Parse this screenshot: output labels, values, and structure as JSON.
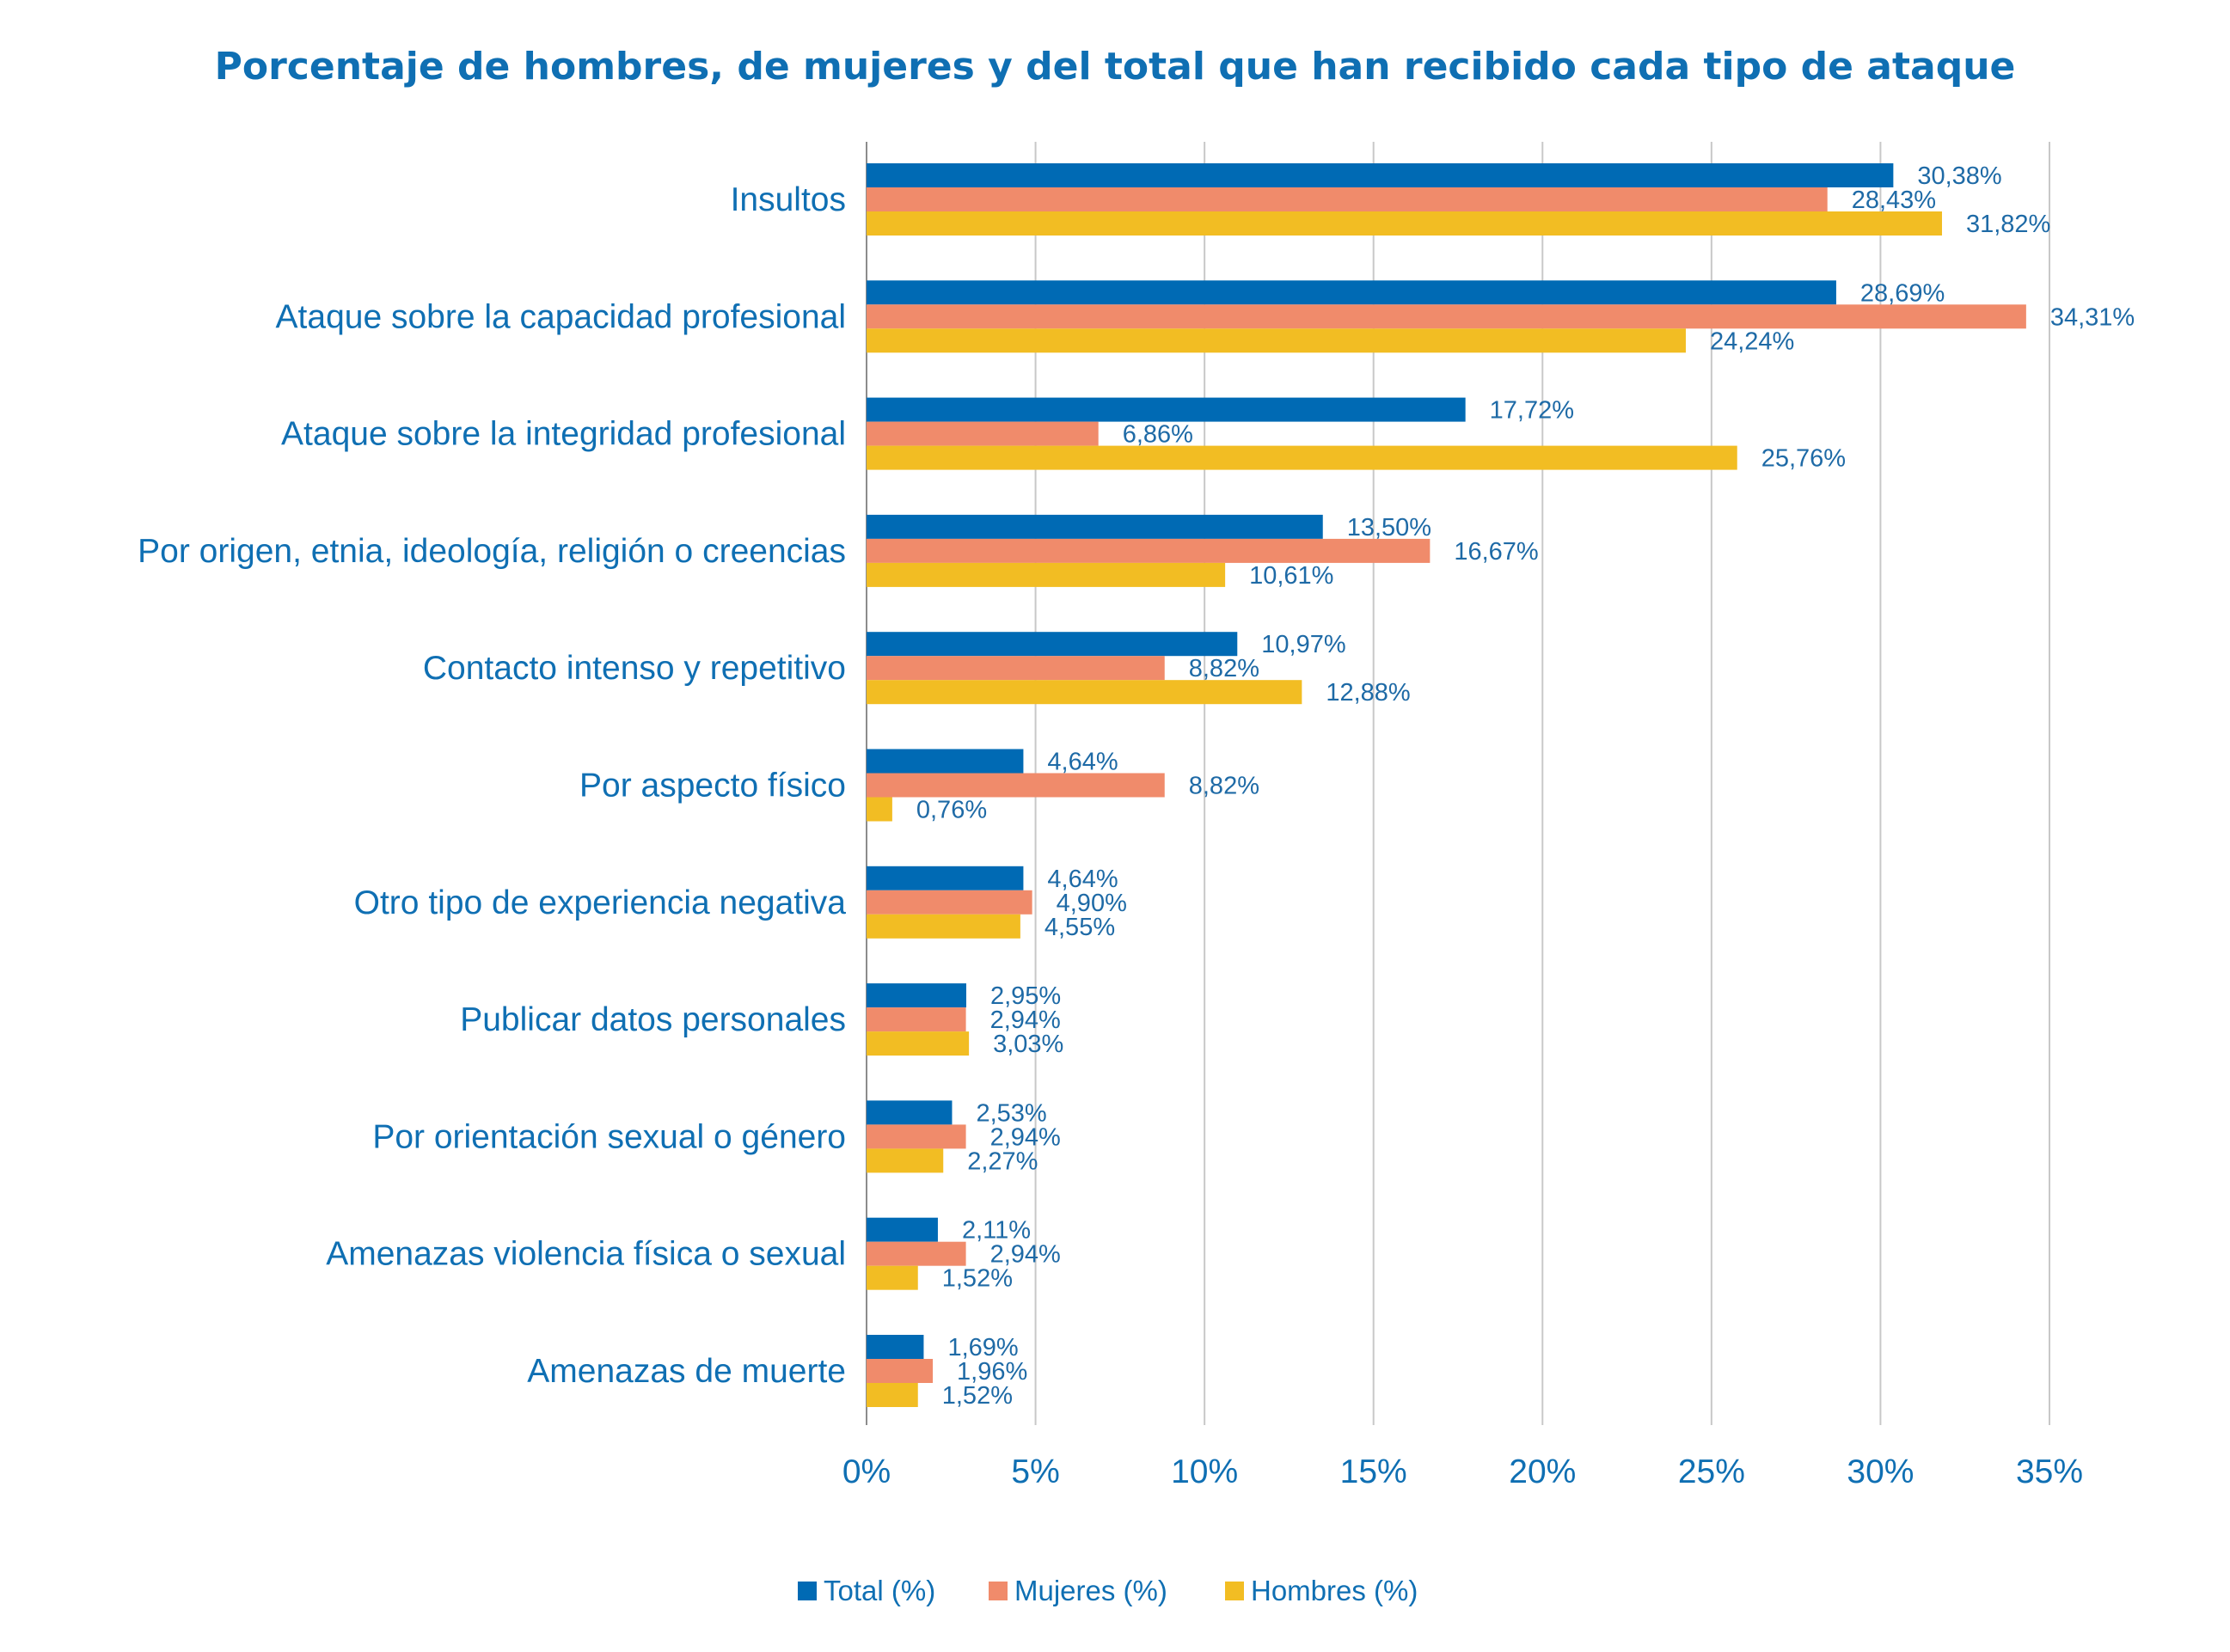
{
  "chart_data": {
    "type": "bar",
    "orientation": "horizontal",
    "title": "Porcentaje de hombres, de mujeres y del total que han recibido cada tipo de ataque",
    "xlabel": "",
    "ylabel": "",
    "xlim": [
      0,
      35
    ],
    "x_ticks": [
      "0%",
      "5%",
      "10%",
      "15%",
      "20%",
      "25%",
      "30%",
      "35%"
    ],
    "grid": true,
    "legend_position": "bottom",
    "categories": [
      "Insultos",
      "Ataque sobre la capacidad profesional",
      "Ataque sobre la integridad profesional",
      "Por origen, etnia, ideología, religión o creencias",
      "Contacto intenso y repetitivo",
      "Por aspecto físico",
      "Otro tipo de experiencia negativa",
      "Publicar datos personales",
      "Por orientación sexual o género",
      "Amenazas violencia física o sexual",
      "Amenazas de muerte"
    ],
    "series": [
      {
        "name": "Total (%)",
        "color": "#006ab4",
        "values": [
          30.38,
          28.69,
          17.72,
          13.5,
          10.97,
          4.64,
          4.64,
          2.95,
          2.53,
          2.11,
          1.69
        ],
        "labels": [
          "30,38%",
          "28,69%",
          "17,72%",
          "13,50%",
          "10,97%",
          "4,64%",
          "4,64%",
          "2,95%",
          "2,53%",
          "2,11%",
          "1,69%"
        ]
      },
      {
        "name": "Mujeres (%)",
        "color": "#f08b6b",
        "values": [
          28.43,
          34.31,
          6.86,
          16.67,
          8.82,
          8.82,
          4.9,
          2.94,
          2.94,
          2.94,
          1.96
        ],
        "labels": [
          "28,43%",
          "34,31%",
          "6,86%",
          "16,67%",
          "8,82%",
          "8,82%",
          "4,90%",
          "2,94%",
          "2,94%",
          "2,94%",
          "1,96%"
        ]
      },
      {
        "name": "Hombres (%)",
        "color": "#f2bd23",
        "values": [
          31.82,
          24.24,
          25.76,
          10.61,
          12.88,
          0.76,
          4.55,
          3.03,
          2.27,
          1.52,
          1.52
        ],
        "labels": [
          "31,82%",
          "24,24%",
          "25,76%",
          "10,61%",
          "12,88%",
          "0,76%",
          "4,55%",
          "3,03%",
          "2,27%",
          "1,52%",
          "1,52%"
        ]
      }
    ]
  }
}
